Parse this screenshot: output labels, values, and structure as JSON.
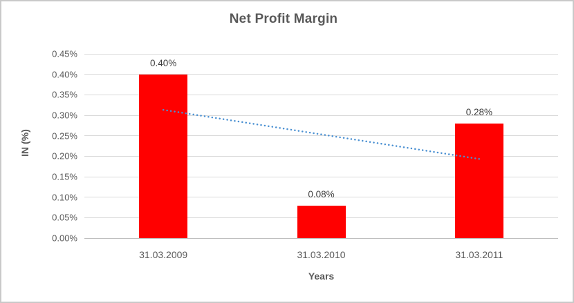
{
  "chart_data": {
    "type": "bar",
    "title": "Net Profit Margin",
    "xlabel": "Years",
    "ylabel": "IN (%)",
    "categories": [
      "31.03.2009",
      "31.03.2010",
      "31.03.2011"
    ],
    "values": [
      0.4,
      0.08,
      0.28
    ],
    "data_labels": [
      "0.40%",
      "0.08%",
      "0.28%"
    ],
    "unit": "percent",
    "ylim": [
      0,
      0.45
    ],
    "ytick_step": 0.05,
    "ytick_labels": [
      "0.00%",
      "0.05%",
      "0.10%",
      "0.15%",
      "0.20%",
      "0.25%",
      "0.30%",
      "0.35%",
      "0.40%",
      "0.45%"
    ],
    "grid": true,
    "legend": false,
    "bar_color": "#FF0000",
    "trendline": {
      "type": "linear",
      "style": "dotted",
      "color": "#4A90D2",
      "start_value": 0.3133,
      "end_value": 0.1933
    },
    "colors": {
      "title_text": "#595959",
      "axis_text": "#595959",
      "data_label_text": "#404040",
      "gridline": "#D9D9D9",
      "axis_line": "#BFBFBF",
      "background": "#FFFFFF",
      "frame_border": "#C9C9C9"
    }
  }
}
